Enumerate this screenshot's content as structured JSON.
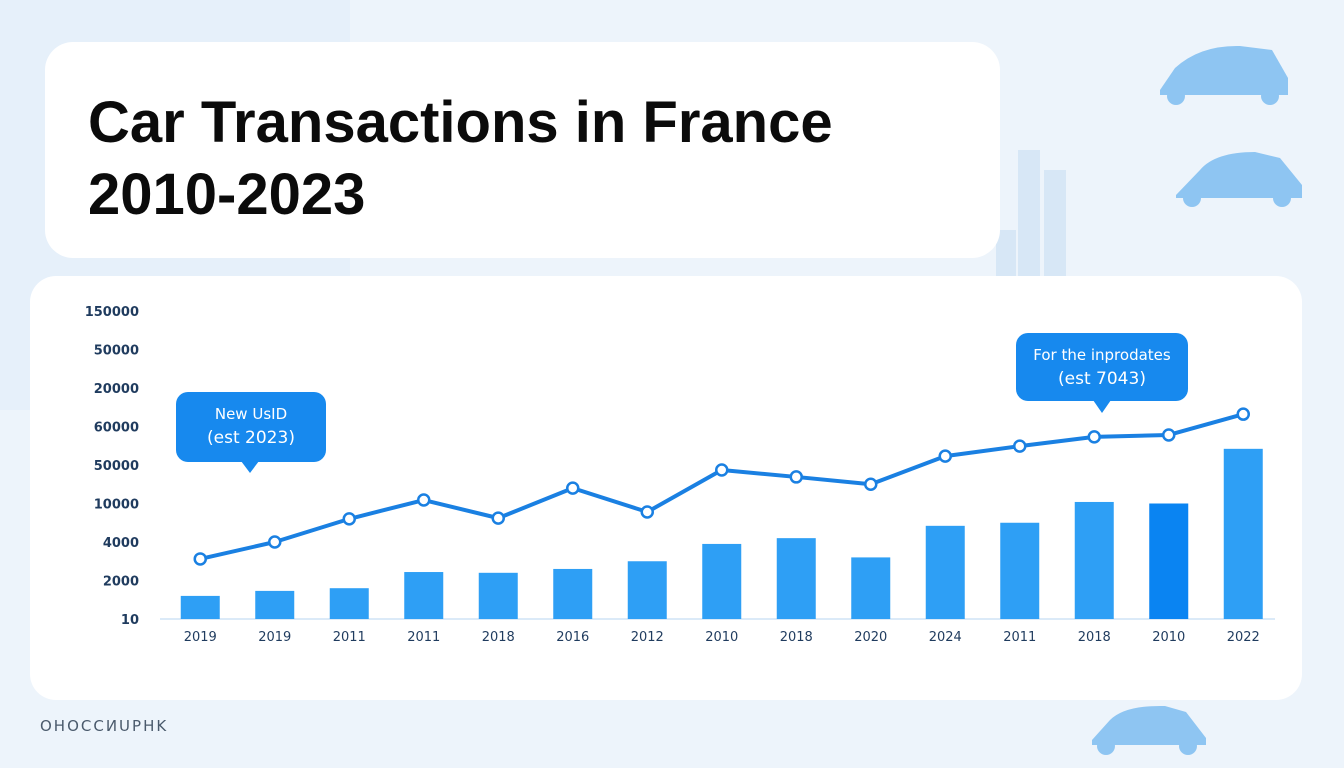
{
  "chart_data": {
    "type": "bar-line",
    "title": "Car Transactions in France",
    "subtitle": "2010-2023",
    "categories": [
      "2019",
      "2019",
      "2011",
      "2011",
      "2018",
      "2016",
      "2012",
      "2010",
      "2018",
      "2020",
      "2024",
      "2011",
      "2018",
      "2010",
      "2022"
    ],
    "series": [
      {
        "type": "bar",
        "color": "#2e9ff5",
        "colors": [
          "#2e9ff5",
          "#2e9ff5",
          "#2e9ff5",
          "#2e9ff5",
          "#2e9ff5",
          "#2e9ff5",
          "#2e9ff5",
          "#2e9ff5",
          "#2e9ff5",
          "#2e9ff5",
          "#2e9ff5",
          "#2e9ff5",
          "#2e9ff5",
          "#0a84f2",
          "#2e9ff5"
        ],
        "values": [
          0.6,
          0.73,
          0.8,
          1.22,
          1.2,
          1.3,
          1.5,
          1.95,
          2.1,
          1.6,
          2.42,
          2.5,
          3.04,
          3.0,
          4.42
        ]
      },
      {
        "type": "line",
        "color": "#1a80e2",
        "values": [
          1.56,
          2.0,
          2.6,
          3.09,
          2.62,
          3.4,
          2.78,
          3.87,
          3.69,
          3.5,
          4.23,
          4.49,
          4.73,
          4.78,
          5.32
        ]
      }
    ],
    "ylim": [
      0,
      8
    ],
    "yticks": [
      {
        "value": 0,
        "label": "10"
      },
      {
        "value": 1,
        "label": "2000"
      },
      {
        "value": 2,
        "label": "4000"
      },
      {
        "value": 3,
        "label": "10000"
      },
      {
        "value": 4,
        "label": "50000"
      },
      {
        "value": 5,
        "label": "60000"
      },
      {
        "value": 6,
        "label": "20000"
      },
      {
        "value": 7,
        "label": "50000"
      },
      {
        "value": 8,
        "label": "150000"
      }
    ],
    "annotations": [
      [
        "New UsID",
        "(est 2023)"
      ],
      [
        "For the inprodates",
        "(est 7043)"
      ]
    ],
    "footer": "OHOCCИUPHK"
  }
}
